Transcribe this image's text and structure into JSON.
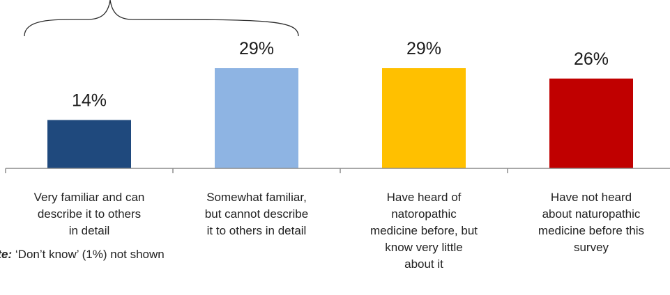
{
  "chart_data": {
    "type": "bar",
    "categories": [
      "Very familiar and can\ndescribe it to others\nin detail",
      "Somewhat familiar,\nbut cannot describe\nit to others in detail",
      "Have heard of\nnatoropathic\nmedicine before, but\nknow very little\nabout it",
      "Have not heard\nabout naturopathic\nmedicine before this\nsurvey"
    ],
    "values": [
      14,
      29,
      29,
      26
    ],
    "data_labels": [
      "14%",
      "29%",
      "29%",
      "26%"
    ],
    "colors": [
      "#1f497d",
      "#8eb4e3",
      "#ffc000",
      "#c00000"
    ],
    "ylim": [
      0,
      35
    ],
    "grid": false,
    "legend": "none",
    "annotation": "brace spanning first two categories"
  },
  "note": {
    "label": "ote:",
    "text": " ‘Don’t know’ (1%) not shown"
  }
}
